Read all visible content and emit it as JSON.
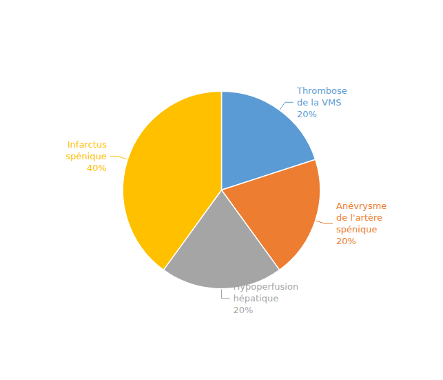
{
  "chart_data": {
    "type": "pie",
    "categories": [
      "Thrombose\nde la VMS\n20%",
      "Anévrysme\nde l'artère\nspénique\n20%",
      "Hypoperfusion\nhépatique\n20%",
      "Infarctus\nspénique\n40%"
    ],
    "values": [
      20,
      20,
      20,
      40
    ],
    "colors": [
      "#5B9BD5",
      "#ED7D31",
      "#A5A5A5",
      "#FFC000"
    ]
  }
}
